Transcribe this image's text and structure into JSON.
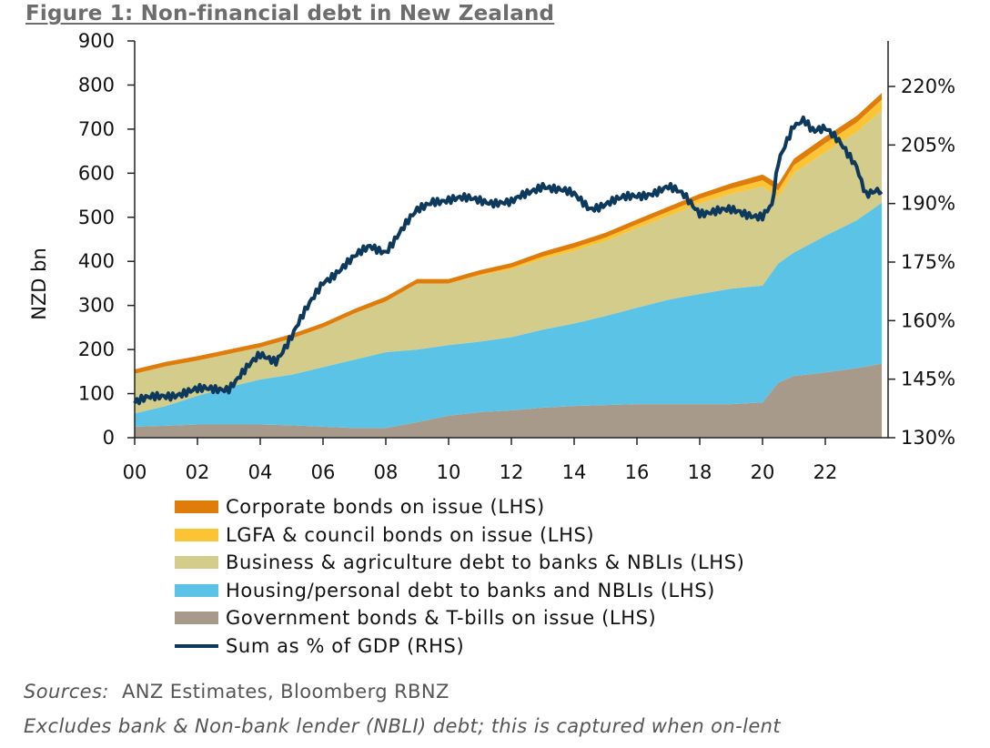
{
  "figure_title": "Figure 1: Non-financial debt in New Zealand",
  "sources_label": "Sources:",
  "sources_text": "ANZ Estimates, Bloomberg RBNZ",
  "note": "Excludes bank & Non-bank lender (NBLI) debt; this is captured when on-lent",
  "chart_data": {
    "type": "area",
    "stacked": true,
    "title": "Figure 1: Non-financial debt in New Zealand",
    "ylabel": "NZD bn",
    "ylim": [
      0,
      900
    ],
    "y_ticks": [
      "0",
      "100",
      "200",
      "300",
      "400",
      "500",
      "600",
      "700",
      "800",
      "900"
    ],
    "y2lim": [
      130,
      230
    ],
    "y2_ticks": [
      "130%",
      "145%",
      "160%",
      "175%",
      "190%",
      "205%",
      "220%"
    ],
    "x_ticks": [
      "00",
      "02",
      "04",
      "06",
      "08",
      "10",
      "12",
      "14",
      "16",
      "18",
      "20",
      "22"
    ],
    "x": [
      2000,
      2001,
      2002,
      2003,
      2004,
      2005,
      2006,
      2007,
      2008,
      2009,
      2010,
      2011,
      2012,
      2013,
      2014,
      2015,
      2016,
      2017,
      2018,
      2019,
      2020,
      2020.5,
      2021,
      2022,
      2023,
      2023.8
    ],
    "series": [
      {
        "name": "Government bonds & T-bills on issue (LHS)",
        "color": "#a89a8b",
        "values": [
          25,
          27,
          30,
          30,
          30,
          28,
          25,
          22,
          22,
          35,
          50,
          58,
          62,
          68,
          72,
          74,
          76,
          76,
          76,
          76,
          80,
          125,
          140,
          148,
          158,
          168
        ]
      },
      {
        "name": "Housing/personal debt to banks and NBLIs (LHS)",
        "color": "#5bc3e6",
        "values": [
          30,
          45,
          65,
          85,
          102,
          115,
          135,
          155,
          172,
          165,
          160,
          160,
          166,
          177,
          187,
          202,
          219,
          237,
          250,
          262,
          265,
          270,
          280,
          310,
          335,
          365
        ]
      },
      {
        "name": "Business & agriculture debt to banks & NBLIs (LHS)",
        "color": "#d4cc8b",
        "values": [
          90,
          90,
          80,
          75,
          73,
          82,
          90,
          105,
          115,
          150,
          140,
          150,
          154,
          160,
          165,
          170,
          180,
          190,
          205,
          215,
          225,
          150,
          180,
          190,
          200,
          210
        ]
      },
      {
        "name": "LGFA & council bonds on issue (LHS)",
        "color": "#fbc434",
        "values": [
          0,
          0,
          0,
          0,
          0,
          0,
          0,
          0,
          0,
          0,
          0,
          2,
          4,
          6,
          7,
          8,
          9,
          10,
          11,
          12,
          14,
          16,
          18,
          20,
          22,
          24
        ]
      },
      {
        "name": "Corporate bonds on issue (LHS)",
        "color": "#e07c0a",
        "values": [
          10,
          10,
          10,
          10,
          10,
          10,
          10,
          10,
          11,
          10,
          10,
          10,
          10,
          11,
          11,
          11,
          11,
          11,
          11,
          12,
          13,
          15,
          15,
          15,
          15,
          15
        ]
      }
    ],
    "line_series": {
      "name": "Sum as % of GDP (RHS)",
      "axis": "right",
      "color": "#0d3a5c",
      "x": [
        2000,
        2001,
        2002,
        2003,
        2004,
        2004.5,
        2005,
        2006,
        2007,
        2007.5,
        2008,
        2009,
        2009.5,
        2010,
        2011,
        2012,
        2013,
        2014,
        2014.5,
        2015,
        2016,
        2017,
        2017.5,
        2018,
        2019,
        2020,
        2020.3,
        2020.5,
        2021,
        2021.3,
        2021.6,
        2022,
        2022.5,
        2023,
        2023.3,
        2023.8
      ],
      "values": [
        139,
        141,
        142,
        143,
        151,
        150,
        156,
        170,
        176,
        179,
        178,
        188,
        191,
        191,
        191,
        190,
        195,
        192,
        189,
        190,
        192,
        194,
        192,
        188,
        188,
        187,
        189,
        200,
        210,
        212,
        208,
        209,
        205,
        200,
        192,
        193
      ]
    },
    "legend_placement": "bottom",
    "grid": false
  }
}
